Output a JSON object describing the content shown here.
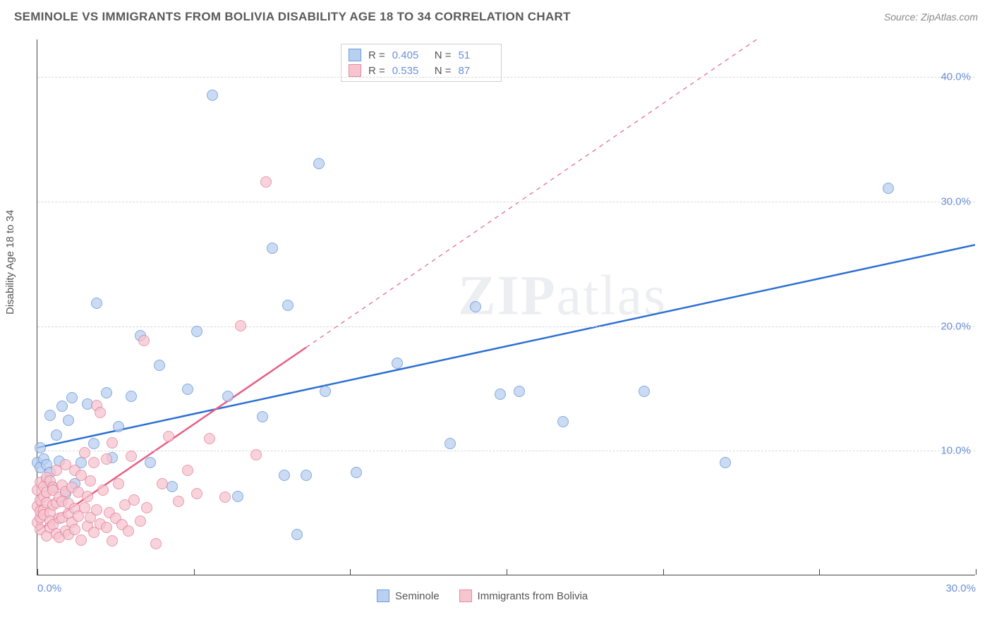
{
  "title": "SEMINOLE VS IMMIGRANTS FROM BOLIVIA DISABILITY AGE 18 TO 34 CORRELATION CHART",
  "source": "Source: ZipAtlas.com",
  "ylabel": "Disability Age 18 to 34",
  "watermark": "ZIPatlas",
  "chart": {
    "type": "scatter",
    "xlim": [
      0,
      30
    ],
    "ylim": [
      0,
      43
    ],
    "xticks": [
      0,
      5,
      10,
      15,
      20,
      25,
      30
    ],
    "xtick_labels": [
      "0.0%",
      "",
      "",
      "",
      "",
      "",
      "30.0%"
    ],
    "yticks": [
      10,
      20,
      30,
      40
    ],
    "ytick_labels": [
      "10.0%",
      "20.0%",
      "30.0%",
      "40.0%"
    ],
    "grid_color": "#d8d8d8",
    "background_color": "#ffffff",
    "axis_color": "#444444",
    "tick_label_color": "#6a8fd8",
    "legend_top": [
      {
        "swatch_fill": "#b9d0f0",
        "swatch_border": "#6a9de0",
        "r_label": "R =",
        "r": "0.405",
        "n_label": "N =",
        "n": "51"
      },
      {
        "swatch_fill": "#f6c5cf",
        "swatch_border": "#e88ca0",
        "r_label": "R =",
        "r": "0.535",
        "n_label": "N =",
        "n": "87"
      }
    ],
    "legend_bottom": [
      {
        "swatch_fill": "#b9d0f0",
        "swatch_border": "#6a9de0",
        "label": "Seminole"
      },
      {
        "swatch_fill": "#f6c5cf",
        "swatch_border": "#e88ca0",
        "label": "Immigrants from Bolivia"
      }
    ],
    "series": [
      {
        "name": "Seminole",
        "marker_fill": "#b9d0f0",
        "marker_border": "#5d8fd4",
        "marker_size": 16,
        "trend": {
          "color": "#2b6fd4",
          "width": 2.5,
          "dash": "none",
          "y_at_x0": 10.2,
          "y_at_xmax": 26.5
        },
        "points": [
          [
            0.0,
            9.0
          ],
          [
            0.1,
            8.6
          ],
          [
            0.1,
            10.2
          ],
          [
            0.2,
            9.3
          ],
          [
            0.3,
            7.6
          ],
          [
            0.3,
            8.8
          ],
          [
            0.4,
            8.2
          ],
          [
            0.4,
            12.8
          ],
          [
            0.5,
            7.0
          ],
          [
            0.6,
            11.2
          ],
          [
            0.7,
            9.1
          ],
          [
            0.8,
            13.5
          ],
          [
            0.9,
            6.5
          ],
          [
            1.0,
            12.4
          ],
          [
            1.1,
            14.2
          ],
          [
            1.2,
            7.3
          ],
          [
            1.4,
            9.0
          ],
          [
            1.6,
            13.7
          ],
          [
            1.8,
            10.5
          ],
          [
            1.9,
            21.8
          ],
          [
            2.2,
            14.6
          ],
          [
            2.4,
            9.4
          ],
          [
            2.6,
            11.9
          ],
          [
            3.0,
            14.3
          ],
          [
            3.3,
            19.2
          ],
          [
            3.6,
            9.0
          ],
          [
            3.9,
            16.8
          ],
          [
            4.3,
            7.1
          ],
          [
            4.8,
            14.9
          ],
          [
            5.1,
            19.5
          ],
          [
            5.6,
            38.5
          ],
          [
            6.1,
            14.3
          ],
          [
            6.4,
            6.3
          ],
          [
            7.2,
            12.7
          ],
          [
            7.5,
            26.2
          ],
          [
            7.9,
            8.0
          ],
          [
            8.0,
            21.6
          ],
          [
            8.3,
            3.2
          ],
          [
            8.6,
            8.0
          ],
          [
            9.0,
            33.0
          ],
          [
            9.2,
            14.7
          ],
          [
            10.2,
            8.2
          ],
          [
            11.5,
            17.0
          ],
          [
            13.2,
            10.5
          ],
          [
            14.0,
            21.5
          ],
          [
            14.8,
            14.5
          ],
          [
            15.4,
            14.7
          ],
          [
            16.8,
            12.3
          ],
          [
            19.4,
            14.7
          ],
          [
            22.0,
            9.0
          ],
          [
            27.2,
            31.0
          ]
        ]
      },
      {
        "name": "Immigrants from Bolivia",
        "marker_fill": "#f6c5cf",
        "marker_border": "#e27a94",
        "marker_size": 16,
        "trend": {
          "color": "#e85f85",
          "width": 2.5,
          "dash": "none",
          "solid_until_x": 8.6,
          "y_at_x0": 3.5,
          "y_at_xmax": 55.0
        },
        "points": [
          [
            0.0,
            5.5
          ],
          [
            0.0,
            6.8
          ],
          [
            0.0,
            4.2
          ],
          [
            0.1,
            6.0
          ],
          [
            0.1,
            4.6
          ],
          [
            0.1,
            5.1
          ],
          [
            0.1,
            7.4
          ],
          [
            0.1,
            3.6
          ],
          [
            0.2,
            7.1
          ],
          [
            0.2,
            5.2
          ],
          [
            0.2,
            6.3
          ],
          [
            0.2,
            4.8
          ],
          [
            0.3,
            7.8
          ],
          [
            0.3,
            5.8
          ],
          [
            0.3,
            3.1
          ],
          [
            0.3,
            6.6
          ],
          [
            0.4,
            5.0
          ],
          [
            0.4,
            4.3
          ],
          [
            0.4,
            7.5
          ],
          [
            0.4,
            3.8
          ],
          [
            0.5,
            5.6
          ],
          [
            0.5,
            7.0
          ],
          [
            0.5,
            4.0
          ],
          [
            0.5,
            6.8
          ],
          [
            0.6,
            3.3
          ],
          [
            0.6,
            5.8
          ],
          [
            0.6,
            8.4
          ],
          [
            0.7,
            4.5
          ],
          [
            0.7,
            6.2
          ],
          [
            0.7,
            3.0
          ],
          [
            0.8,
            7.2
          ],
          [
            0.8,
            4.6
          ],
          [
            0.8,
            5.9
          ],
          [
            0.9,
            3.5
          ],
          [
            0.9,
            6.7
          ],
          [
            0.9,
            8.8
          ],
          [
            1.0,
            4.9
          ],
          [
            1.0,
            3.2
          ],
          [
            1.0,
            5.7
          ],
          [
            1.1,
            7.0
          ],
          [
            1.1,
            4.2
          ],
          [
            1.2,
            8.4
          ],
          [
            1.2,
            3.6
          ],
          [
            1.2,
            5.3
          ],
          [
            1.3,
            6.6
          ],
          [
            1.3,
            4.7
          ],
          [
            1.4,
            2.8
          ],
          [
            1.4,
            8.0
          ],
          [
            1.5,
            5.4
          ],
          [
            1.5,
            9.8
          ],
          [
            1.6,
            3.9
          ],
          [
            1.6,
            6.3
          ],
          [
            1.7,
            4.6
          ],
          [
            1.7,
            7.5
          ],
          [
            1.8,
            3.4
          ],
          [
            1.8,
            9.0
          ],
          [
            1.9,
            5.2
          ],
          [
            1.9,
            13.6
          ],
          [
            2.0,
            4.1
          ],
          [
            2.0,
            13.0
          ],
          [
            2.1,
            6.8
          ],
          [
            2.2,
            3.8
          ],
          [
            2.2,
            9.3
          ],
          [
            2.3,
            5.0
          ],
          [
            2.4,
            2.7
          ],
          [
            2.4,
            10.6
          ],
          [
            2.5,
            4.5
          ],
          [
            2.6,
            7.3
          ],
          [
            2.7,
            4.0
          ],
          [
            2.8,
            5.6
          ],
          [
            2.9,
            3.5
          ],
          [
            3.0,
            9.5
          ],
          [
            3.1,
            6.0
          ],
          [
            3.3,
            4.3
          ],
          [
            3.4,
            18.8
          ],
          [
            3.5,
            5.4
          ],
          [
            3.8,
            2.5
          ],
          [
            4.0,
            7.3
          ],
          [
            4.2,
            11.1
          ],
          [
            4.5,
            5.9
          ],
          [
            4.8,
            8.4
          ],
          [
            5.1,
            6.5
          ],
          [
            5.5,
            10.9
          ],
          [
            6.0,
            6.2
          ],
          [
            6.5,
            20.0
          ],
          [
            7.0,
            9.6
          ],
          [
            7.3,
            31.5
          ]
        ]
      }
    ]
  }
}
